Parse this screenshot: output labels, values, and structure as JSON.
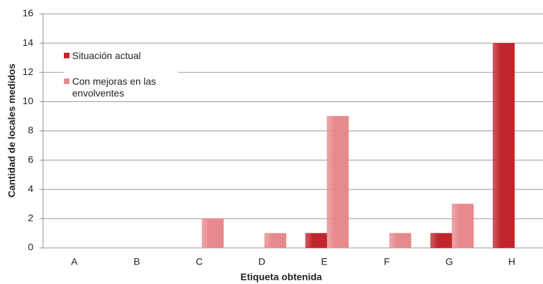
{
  "chart_data": {
    "type": "bar",
    "categories": [
      "A",
      "B",
      "C",
      "D",
      "E",
      "F",
      "G",
      "H"
    ],
    "series": [
      {
        "name": "Situación actual",
        "color": "#c0262c",
        "values": [
          0,
          0,
          0,
          0,
          1,
          0,
          1,
          14
        ]
      },
      {
        "name": "Con mejoras en las envolventes",
        "color": "#e8898d",
        "values": [
          0,
          0,
          2,
          1,
          9,
          1,
          3,
          0
        ]
      }
    ],
    "x_label": "Etiqueta obtenida",
    "y_label": "Cantidad de locales medidos",
    "ylim": [
      0,
      16
    ],
    "yticks": [
      0,
      2,
      4,
      6,
      8,
      10,
      12,
      14,
      16
    ],
    "grid": true,
    "legend": "upper left"
  }
}
